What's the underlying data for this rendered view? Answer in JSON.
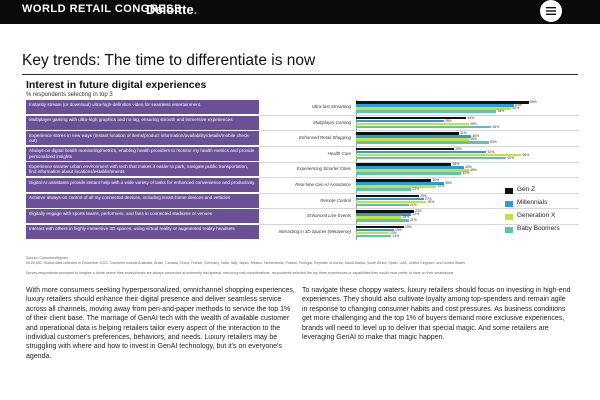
{
  "header": {
    "brand_primary": "WORLD RETAIL CONGRESS",
    "brand_secondary": "Deloitte",
    "brand_secondary_dot": ".",
    "menu_icon": "hamburger-icon"
  },
  "page_title": "Key trends: The time to differentiate is now",
  "chart_data": {
    "type": "bar",
    "title": "Interest in future digital experiences",
    "subtitle": "% respondents selecting in top 3",
    "series": [
      {
        "name": "Gen Z",
        "color": "#111111"
      },
      {
        "name": "Millennials",
        "color": "#2a9fd6"
      },
      {
        "name": "Generation X",
        "color": "#c7e03a"
      },
      {
        "name": "Baby Boomers",
        "color": "#5ec1b2"
      }
    ],
    "categories": [
      {
        "label": "Ultra-fast Streaming",
        "description": "Instantly stream (or download) ultra-high-definition video for seamless entertainment.",
        "values": [
          69,
          63,
          62,
          56
        ]
      },
      {
        "label": "Multiplayer Gaming",
        "description": "Multiplayer gaming with ultra-high graphics and no lag, ensuring smooth and immersive experiences",
        "values": [
          44,
          35,
          45,
          54
        ]
      },
      {
        "label": "Enhanced Retail Shopping",
        "description": "Experience stores in new ways (instant location of items/product information/availability/details/mobile check-out)",
        "values": [
          41,
          46,
          45,
          53
        ]
      },
      {
        "label": "Health Care",
        "description": "Always-on digital health monitoring/metrics, enabling health providers to monitor my health metrics and provide personalized insights",
        "values": [
          39,
          52,
          66,
          60
        ]
      },
      {
        "label": "Experiencing Smarter Cities",
        "description": "Experience smarter urban environment with tech that makes it easier to park, navigate public transportation, find information about locations/establishments",
        "values": [
          38,
          43,
          45,
          42
        ]
      },
      {
        "label": "Real-time Gen AI Assistance",
        "description": "Digital AI assistants provide instant help with a wide variety of tasks for enhanced convenience and productivity.",
        "values": [
          30,
          35,
          32,
          22
        ]
      },
      {
        "label": "Remote Control",
        "description": "Achieve always-on control of all my connected devices, including smart-home devices and vehicles",
        "values": [
          25,
          27,
          28,
          21
        ]
      },
      {
        "label": "Enhanced Live Events",
        "description": "Digitally engage with sports teams, performers, and fans in connected stadiums or venues",
        "values": [
          23,
          22,
          18,
          21
        ]
      },
      {
        "label": "Interacting in 3D Spaces (Metaverse)",
        "description": "Interact with others in highly immersive 3D spaces, using virtual reality or augmented reality headsets",
        "values": [
          19,
          15,
          13,
          14
        ]
      }
    ],
    "ylim": [
      0,
      80
    ]
  },
  "source": {
    "heading": "Source: ConsumerSignals",
    "text": "N=20,000. Global data collected in December 2023. Countries include Australia, Brazil, Canada, China, France, Germany, India, Italy, Japan, Mexico, Netherlands, Poland, Portugal, Republic of Korea, Saudi Arabia, South Africa, Spain, UAE, United Kingdom, and United States",
    "note": "Survey respondents prompted to imagine a future where their smartphones are always connected at extremely fast speeds, removing cost considerations, respondents selected the top three experiences or capabilities they would most prefer to have on their smartphone"
  },
  "body": {
    "col1": "With more consumers seeking hyperpersonalized, omnichannel shopping experiences, luxury retailers should enhance their digital presence and deliver seamless service across all channels, moving away from pen-and-paper methods to service the top 1% of their client base. The marriage of GenAI tech with the wealth of available customer and operational data is helping retailers tailor every aspect of the interaction to the individual customer's preferences, behaviors, and needs. Luxury retailers may be struggling with where and how to invest in GenAI technology, but it's on everyone's agenda.",
    "col2": "To navigate these choppy waters, luxury retailers should focus on investing in high-end experiences. They should also cultivate loyalty among top-spenders and remain agile in response to changing consumer habits and cost pressures. As business conditions get more challenging and the top 1% of buyers demand more exclusive experiences, brands will need to level up to deliver that special magic. And some retailers are leveraging GenAI to make that magic happen."
  }
}
